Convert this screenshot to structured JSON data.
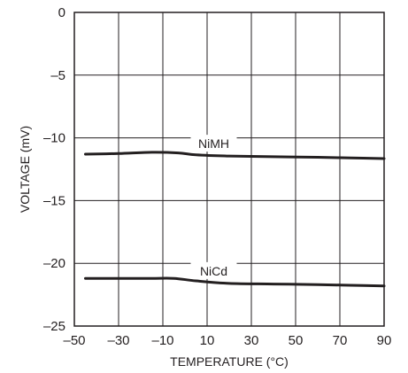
{
  "chart_data": {
    "type": "line",
    "title": "",
    "xlabel": "TEMPERATURE (°C)",
    "ylabel": "VOLTAGE (mV)",
    "xlim": [
      -50,
      90
    ],
    "ylim": [
      -25,
      0
    ],
    "x_ticks": [
      -50,
      -30,
      -10,
      10,
      30,
      50,
      70,
      90
    ],
    "x_tick_labels": [
      "–50",
      "–30",
      "–10",
      "10",
      "30",
      "50",
      "70",
      "90"
    ],
    "y_ticks": [
      0,
      -5,
      -10,
      -15,
      -20,
      -25
    ],
    "y_tick_labels": [
      "0",
      "–5",
      "–10",
      "–15",
      "–20",
      "–25"
    ],
    "grid": true,
    "legend": "none",
    "series": [
      {
        "name": "NiMH",
        "x": [
          -45,
          -30,
          -15,
          -3,
          5,
          20,
          40,
          60,
          75,
          90
        ],
        "values": [
          -11.3,
          -11.25,
          -11.15,
          -11.2,
          -11.35,
          -11.45,
          -11.5,
          -11.55,
          -11.6,
          -11.65
        ]
      },
      {
        "name": "NiCd",
        "x": [
          -45,
          -30,
          -15,
          -5,
          5,
          20,
          40,
          60,
          75,
          90
        ],
        "values": [
          -21.2,
          -21.2,
          -21.2,
          -21.2,
          -21.4,
          -21.6,
          -21.65,
          -21.7,
          -21.75,
          -21.8
        ]
      }
    ]
  }
}
